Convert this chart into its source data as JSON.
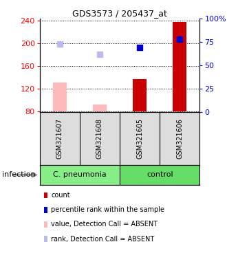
{
  "title": "GDS3573 / 205437_at",
  "samples": [
    "GSM321607",
    "GSM321608",
    "GSM321605",
    "GSM321606"
  ],
  "bar_values": [
    130,
    92,
    137,
    238
  ],
  "bar_colors": [
    "#ffbbbb",
    "#ffbbbb",
    "#cc0000",
    "#cc0000"
  ],
  "dot_values": [
    199,
    180,
    193,
    207
  ],
  "dot_colors": [
    "#bbbbee",
    "#bbbbee",
    "#0000cc",
    "#0000cc"
  ],
  "ylim_left": [
    78,
    244
  ],
  "ylim_right": [
    0,
    100
  ],
  "yticks_left": [
    80,
    120,
    160,
    200,
    240
  ],
  "ytick_labels_right": [
    "0",
    "25",
    "50",
    "75",
    "100%"
  ],
  "ybaseline": 80,
  "groups": [
    {
      "label": "C. pneumonia",
      "indices": [
        0,
        1
      ],
      "color": "#88ee88"
    },
    {
      "label": "control",
      "indices": [
        2,
        3
      ],
      "color": "#66dd66"
    }
  ],
  "group_label": "infection",
  "legend_items": [
    {
      "color": "#cc0000",
      "label": "count"
    },
    {
      "color": "#0000cc",
      "label": "percentile rank within the sample"
    },
    {
      "color": "#ffbbbb",
      "label": "value, Detection Call = ABSENT"
    },
    {
      "color": "#bbbbee",
      "label": "rank, Detection Call = ABSENT"
    }
  ],
  "background_color": "#ffffff",
  "sample_bg_color": "#dddddd",
  "bar_width": 0.35,
  "dot_size": 35
}
